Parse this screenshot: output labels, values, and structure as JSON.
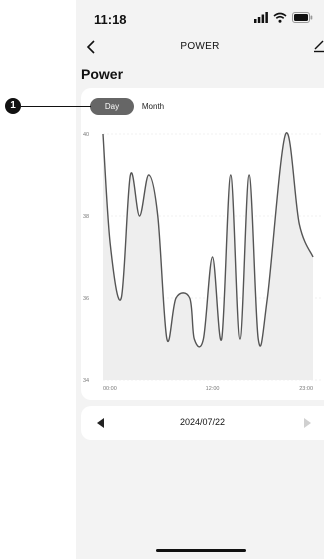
{
  "status_bar": {
    "time": "11:18"
  },
  "nav": {
    "title": "POWER"
  },
  "page": {
    "title": "Power"
  },
  "tabs": [
    {
      "label": "Day",
      "active": true
    },
    {
      "label": "Month",
      "active": false
    }
  ],
  "date_picker": {
    "date": "2024/07/22"
  },
  "annotation": {
    "number": "1"
  },
  "colors": {
    "line": "#555555",
    "fill": "#eeeeee",
    "active_tab": "#666666",
    "grid": "#e2e2e2"
  },
  "icons": [
    "back-arrow",
    "edit",
    "prev-triangle",
    "next-triangle",
    "signal",
    "wifi",
    "battery"
  ],
  "chart_data": {
    "type": "area",
    "x_ticks": [
      "00:00",
      "12:00",
      "23:00"
    ],
    "y_ticks": [
      "34",
      "36",
      "38",
      "40"
    ],
    "ylim": [
      34,
      40
    ],
    "x_unit": "hour",
    "xlim": [
      0,
      23
    ],
    "grid": true,
    "values": [
      {
        "x": 0,
        "y": 40
      },
      {
        "x": 0.8,
        "y": 37.3
      },
      {
        "x": 2,
        "y": 36
      },
      {
        "x": 3,
        "y": 39
      },
      {
        "x": 4,
        "y": 38
      },
      {
        "x": 5,
        "y": 39
      },
      {
        "x": 6,
        "y": 38
      },
      {
        "x": 7,
        "y": 35
      },
      {
        "x": 8,
        "y": 36
      },
      {
        "x": 9.5,
        "y": 36
      },
      {
        "x": 10,
        "y": 35
      },
      {
        "x": 11,
        "y": 35
      },
      {
        "x": 12,
        "y": 37
      },
      {
        "x": 13,
        "y": 35
      },
      {
        "x": 14,
        "y": 39
      },
      {
        "x": 15,
        "y": 35
      },
      {
        "x": 16,
        "y": 39
      },
      {
        "x": 17,
        "y": 35
      },
      {
        "x": 18,
        "y": 36
      },
      {
        "x": 20,
        "y": 40
      },
      {
        "x": 21.5,
        "y": 37.8
      },
      {
        "x": 23,
        "y": 37
      }
    ]
  }
}
